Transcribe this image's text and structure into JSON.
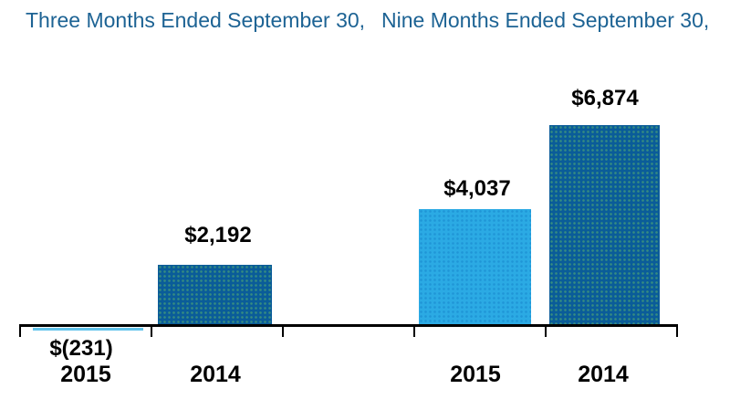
{
  "chart_data": {
    "type": "bar",
    "title": "",
    "grid": false,
    "legend": null,
    "ylim": [
      -500,
      7500
    ],
    "value_prefix": "$",
    "colors": {
      "dark_blue_bar": "#0a5c99",
      "light_blue_bar": "#2baae4",
      "negative_bar": "#63c4ec",
      "header_text": "#1d6394",
      "label_text": "#000000",
      "axis": "#000000"
    },
    "groups": [
      {
        "header": "Three Months Ended September 30,",
        "categories": [
          "2015",
          "2014"
        ],
        "values": [
          -231,
          2192
        ],
        "labels": [
          "$(231)",
          "$2,192"
        ],
        "bar_colors": [
          "light_blue_bar",
          "dark_blue_bar"
        ]
      },
      {
        "header": "Nine Months Ended September 30,",
        "categories": [
          "2015",
          "2014"
        ],
        "values": [
          4037,
          6874
        ],
        "labels": [
          "$4,037",
          "$6,874"
        ],
        "bar_colors": [
          "light_blue_bar",
          "dark_blue_bar"
        ]
      }
    ]
  }
}
